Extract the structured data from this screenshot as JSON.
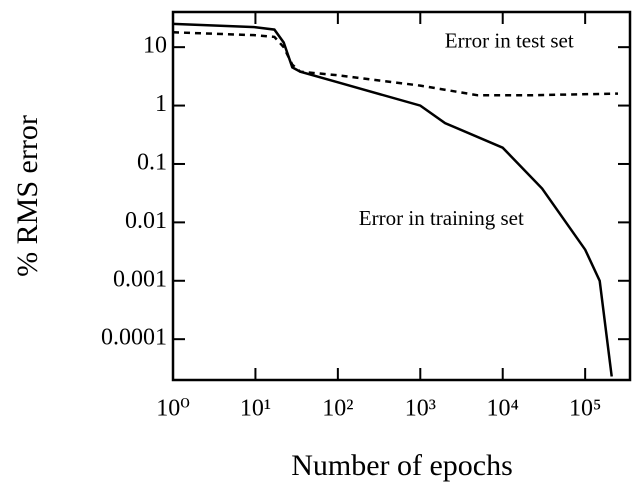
{
  "chart_data": {
    "type": "line",
    "x_label": "Number of epochs",
    "y_label": "% RMS error",
    "log_x": true,
    "log_y": true,
    "xlim": [
      1,
      350000
    ],
    "ylim": [
      2e-05,
      40
    ],
    "xticks": [
      {
        "value": 1,
        "label": "10⁰"
      },
      {
        "value": 10,
        "label": "10¹"
      },
      {
        "value": 100,
        "label": "10²"
      },
      {
        "value": 1000,
        "label": "10³"
      },
      {
        "value": 10000,
        "label": "10⁴"
      },
      {
        "value": 100000,
        "label": "10⁵"
      }
    ],
    "yticks": [
      10,
      1,
      0.1,
      0.01,
      0.001,
      0.0001
    ],
    "series": [
      {
        "name": "Error in training set",
        "color": "#000000",
        "dash": false,
        "x": [
          1,
          10,
          17,
          22,
          28,
          35,
          100,
          1000,
          2000,
          10000,
          30000,
          100000,
          150000,
          210000
        ],
        "values": [
          25,
          22,
          20,
          12,
          4.5,
          3.8,
          2.5,
          1,
          0.5,
          0.19,
          0.038,
          0.0034,
          0.001,
          2.3e-05
        ]
      },
      {
        "name": "Error in test set",
        "color": "#000000",
        "dash": true,
        "x": [
          1,
          10,
          17,
          22,
          28,
          35,
          100,
          1000,
          5000,
          20000,
          250000
        ],
        "values": [
          18,
          16,
          15,
          10,
          5,
          3.8,
          3.3,
          2.2,
          1.5,
          1.5,
          1.6
        ]
      }
    ],
    "annotations": [
      {
        "text": "Error in test set",
        "x": 12000,
        "y": 12
      },
      {
        "text": "Error in training set",
        "x": 1800,
        "y": 0.011
      }
    ]
  }
}
